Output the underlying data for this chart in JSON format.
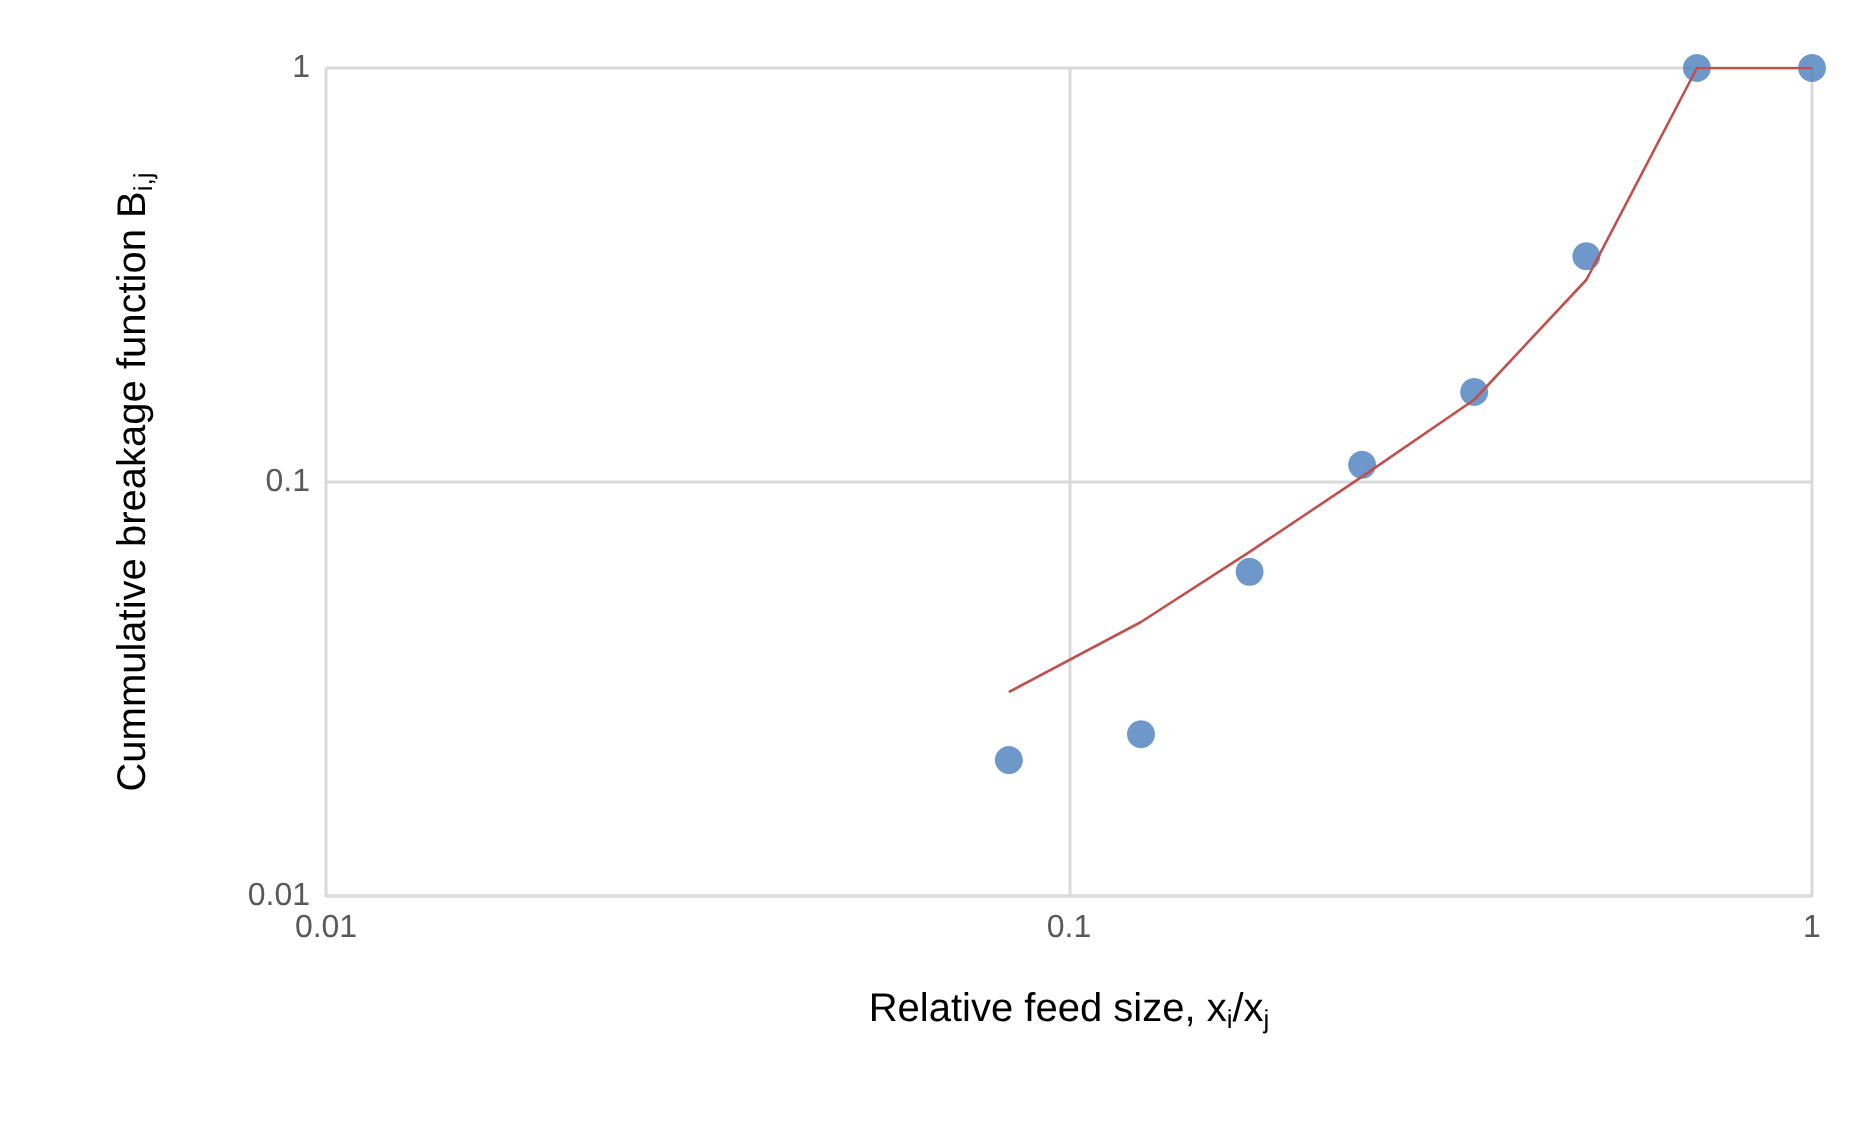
{
  "chart_data": {
    "type": "scatter",
    "xlabel": "Relative feed size, x$_{i}$/x$_{j}$",
    "ylabel": "Cummulative breakage function B$_{i,j}$",
    "log": "xy",
    "grid": true,
    "marker": "circle",
    "xlim": [
      0.01,
      1
    ],
    "xticks": [
      0.01,
      0.1,
      1
    ],
    "ylim": [
      0.01,
      1
    ],
    "yticks": [
      0.01,
      0.1,
      1
    ],
    "series": [
      {
        "color": "#4a7ebb",
        "x": [
          0.083,
          0.125,
          0.175,
          0.248,
          0.351,
          0.497,
          0.7,
          1
        ],
        "values": [
          0.0213,
          0.0246,
          0.0607,
          0.11,
          0.165,
          0.351,
          1,
          1
        ]
      },
      {
        "type": "line",
        "color": "#c0504d",
        "marker": "none",
        "line_style": "solid",
        "x": [
          0.083,
          0.125,
          0.175,
          0.248,
          0.351,
          0.497,
          0.7,
          1
        ],
        "values": [
          0.0311,
          0.0459,
          0.0678,
          0.103,
          0.158,
          0.308,
          1,
          1
        ]
      }
    ]
  }
}
